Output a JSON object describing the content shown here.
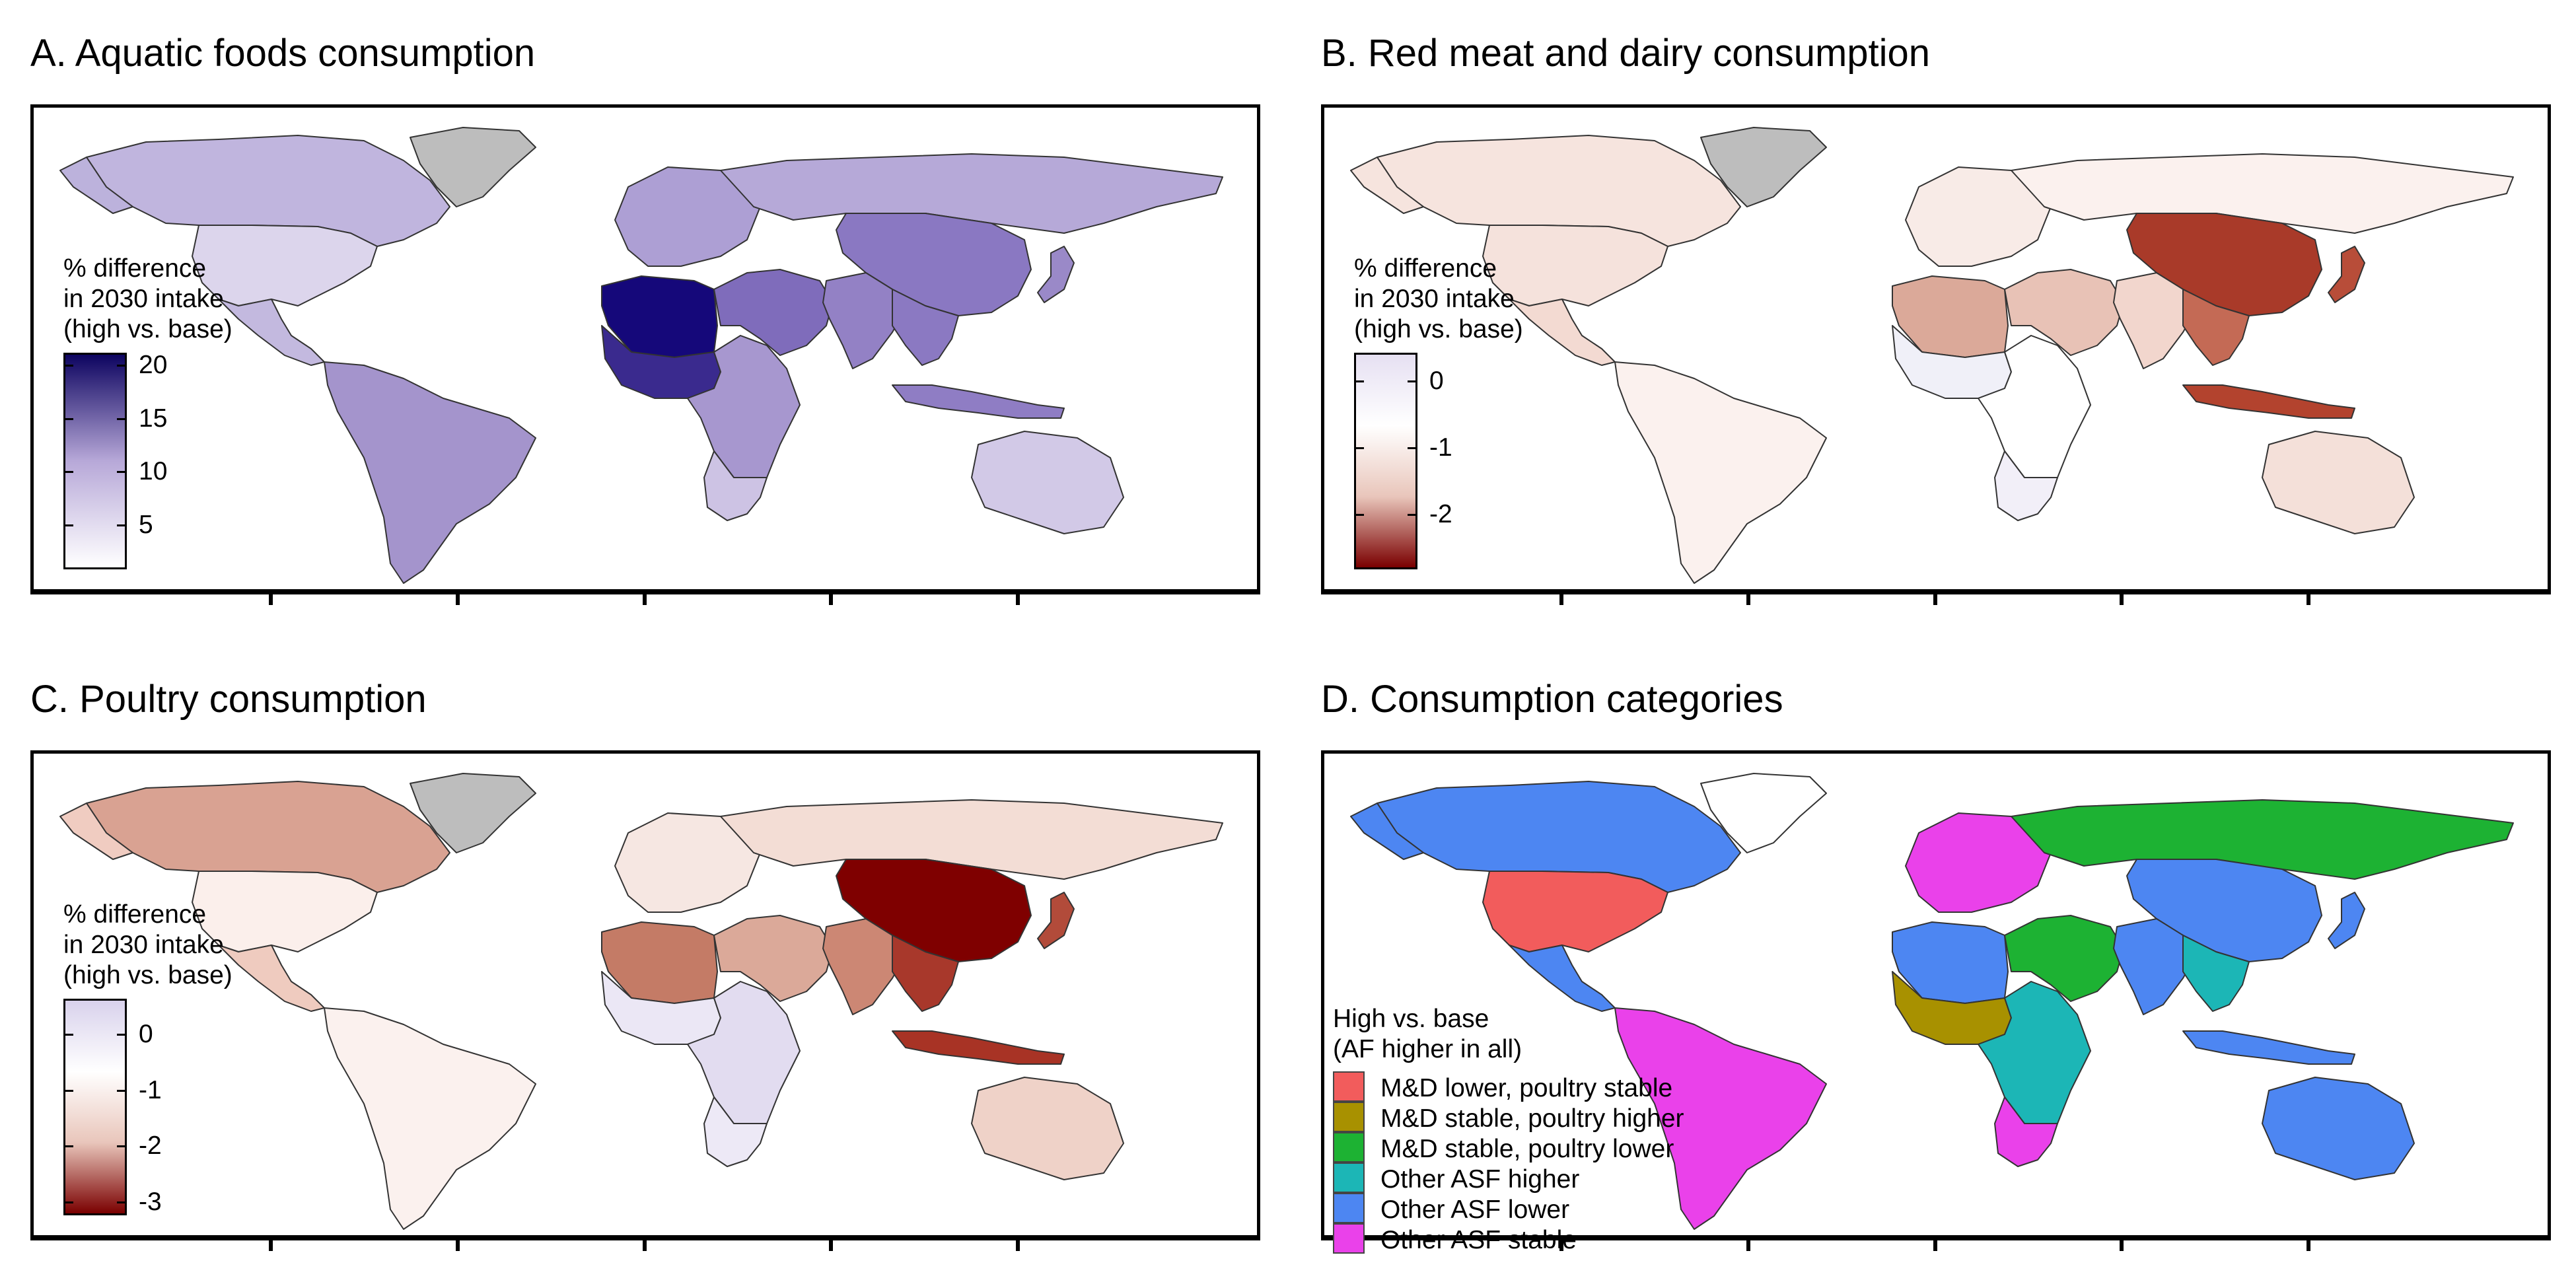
{
  "panels": {
    "a": {
      "title": "A. Aquatic foods consumption",
      "legend": {
        "title": "% difference\nin 2030 intake\n(high vs. base)",
        "ticks": [
          "20",
          "15",
          "10",
          "5"
        ],
        "tick_values": [
          20,
          15,
          10,
          5
        ],
        "range": [
          1,
          21
        ],
        "colors": [
          "#ffffff",
          "#b7a8d8",
          "#0d0460"
        ]
      },
      "fills": {
        "north_america": "#bcb2dc",
        "canada": "#c0b5de",
        "us": "#dcd5ec",
        "mexico": "#c3b9df",
        "south_america": "#a494cc",
        "europe": "#ad9fd4",
        "north_africa": "#15087a",
        "west_africa": "#3a2a8e",
        "africa": "#a797cf",
        "southern_africa": "#cdc3e4",
        "middle_east": "#7f6cbb",
        "russia": "#b6a9d8",
        "china": "#8a78c2",
        "india": "#9381c5",
        "se_asia": "#8b79c2",
        "indonesia": "#8f7dc4",
        "australia": "#d2c9e7",
        "japan": "#9a89c8",
        "greenland": "#bdbdbd"
      }
    },
    "b": {
      "title": "B. Red meat and dairy consumption",
      "legend": {
        "title": "% difference\nin 2030 intake\n(high vs. base)",
        "ticks": [
          "0",
          "-1",
          "-2"
        ],
        "tick_values": [
          0,
          -1,
          -2
        ],
        "range": [
          -2.8,
          0.4
        ],
        "colors": [
          "#7a0000",
          "#e9c6bb",
          "#ffffff",
          "#e6e0f2"
        ]
      },
      "fills": {
        "north_america": "#f6e4de",
        "canada": "#f6e4de",
        "us": "#f5e2dc",
        "mexico": "#f3dad2",
        "south_america": "#fbf1ee",
        "europe": "#f8ebe7",
        "north_africa": "#dba999",
        "west_africa": "#f0f0f8",
        "africa": "#ffffff",
        "southern_africa": "#f2eff8",
        "middle_east": "#e8c2b6",
        "russia": "#fbf1ee",
        "china": "#a93a29",
        "india": "#f2d6cd",
        "se_asia": "#c46a55",
        "indonesia": "#b3432e",
        "australia": "#f4e0d9",
        "japan": "#b84d39",
        "greenland": "#bdbdbd"
      }
    },
    "c": {
      "title": "C. Poultry consumption",
      "legend": {
        "title": "% difference\nin 2030 intake\n(high vs. base)",
        "ticks": [
          "0",
          "-1",
          "-2",
          "-3"
        ],
        "tick_values": [
          0,
          -1,
          -2,
          -3
        ],
        "range": [
          -3.2,
          0.6
        ],
        "colors": [
          "#7a0000",
          "#e9c6bb",
          "#ffffff",
          "#d9d2ec"
        ]
      },
      "fills": {
        "north_america": "#f0ccc1",
        "canada": "#d9a292",
        "us": "#fbefeb",
        "mexico": "#efcbbf",
        "south_america": "#fbf1ee",
        "europe": "#f6e7e2",
        "north_africa": "#c47b66",
        "west_africa": "#ebe7f5",
        "africa": "#e2dcf0",
        "southern_africa": "#ede9f6",
        "middle_east": "#dba999",
        "russia": "#f3ddd5",
        "china": "#7f0000",
        "india": "#cc8774",
        "se_asia": "#a8382b",
        "indonesia": "#a83325",
        "australia": "#efd2c8",
        "japan": "#b24b3a",
        "greenland": "#bdbdbd"
      }
    },
    "d": {
      "title": "D. Consumption categories",
      "legend": {
        "title": "High vs. base\n(AF higher in all)",
        "categories": [
          {
            "label": "M&D lower, poultry stable",
            "color": "#f25c5c"
          },
          {
            "label": "M&D stable, poultry higher",
            "color": "#a89100"
          },
          {
            "label": "M&D stable, poultry lower",
            "color": "#1db233"
          },
          {
            "label": "Other ASF higher",
            "color": "#1cb6b6"
          },
          {
            "label": "Other ASF lower",
            "color": "#4d86f2"
          },
          {
            "label": "Other ASF stable",
            "color": "#ea41ea"
          }
        ]
      },
      "fills": {
        "north_america": "#4d86f2",
        "canada": "#4d86f2",
        "us": "#f25c5c",
        "mexico": "#4d86f2",
        "south_america": "#ea41ea",
        "europe": "#ea41ea",
        "north_africa": "#4d86f2",
        "west_africa": "#a89100",
        "africa": "#1cb6b6",
        "southern_africa": "#ea41ea",
        "middle_east": "#1db233",
        "russia": "#1db233",
        "china": "#4d86f2",
        "india": "#4d86f2",
        "se_asia": "#1cb6b6",
        "indonesia": "#4d86f2",
        "australia": "#4d86f2",
        "japan": "#4d86f2",
        "greenland": "#ffffff"
      }
    }
  }
}
